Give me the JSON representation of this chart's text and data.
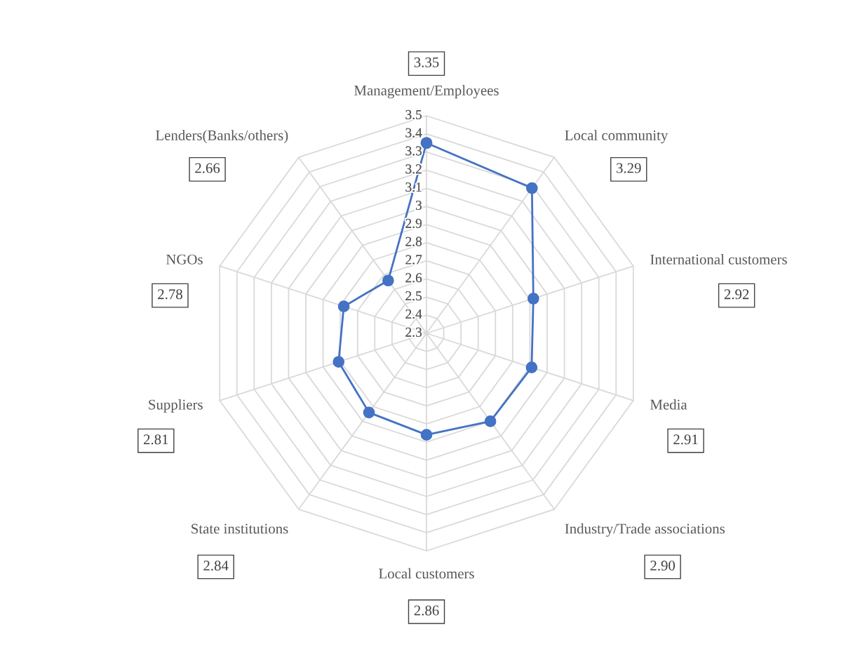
{
  "chart_data": {
    "type": "radar",
    "categories": [
      "Management/Employees",
      "Local community",
      "International customers",
      "Media",
      "Industry/Trade associations",
      "Local customers",
      "State institutions",
      "Suppliers",
      "NGOs",
      "Lenders(Banks/others)"
    ],
    "series": [
      {
        "color": "#4472c4",
        "values": [
          3.35,
          3.29,
          2.92,
          2.91,
          2.9,
          2.86,
          2.84,
          2.81,
          2.78,
          2.66
        ]
      }
    ],
    "annotations": [
      "3.35",
      "3.29",
      "2.92",
      "2.91",
      "2.90",
      "2.86",
      "2.84",
      "2.81",
      "2.78",
      "2.66"
    ],
    "ylim": [
      2.3,
      3.5
    ],
    "yticks": [
      2.3,
      2.4,
      2.5,
      2.6,
      2.7,
      2.8,
      2.9,
      3,
      3.1,
      3.2,
      3.3,
      3.4,
      3.5
    ],
    "grid": true,
    "marker": "circle",
    "line_style": "solid",
    "legend": false
  }
}
